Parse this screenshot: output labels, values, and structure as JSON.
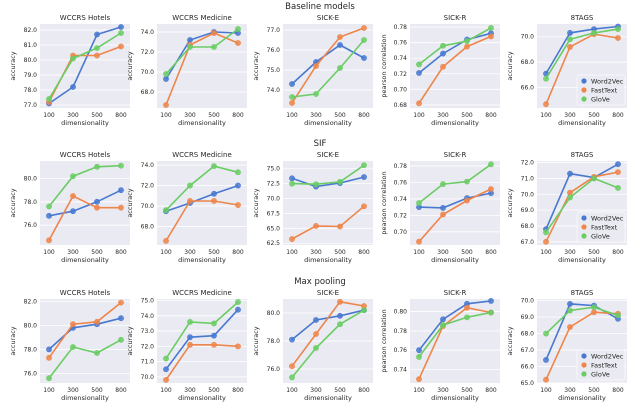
{
  "colors": {
    "Word2Vec": "#4878d0",
    "FastText": "#ee854a",
    "GloVe": "#6acc64",
    "plot_bg": "#eaeaf2",
    "grid": "#ffffff"
  },
  "legend": [
    "Word2Vec",
    "FastText",
    "GloVe"
  ],
  "row_titles": [
    "Baseline models",
    "SIF",
    "Max pooling"
  ],
  "chart_data": [
    {
      "type": "line",
      "row": "Baseline models",
      "title": "WCCRS Hotels",
      "xlabel": "dimensionality",
      "ylabel": "accuracy",
      "categories": [
        "100",
        "300",
        "500",
        "800"
      ],
      "ylim": [
        76.8,
        82.4
      ],
      "yticks": [
        77.0,
        78.0,
        79.0,
        80.0,
        81.0,
        82.0
      ],
      "ytick_labels": [
        "77.0",
        "78.0",
        "79.0",
        "80.0",
        "81.0",
        "82.0"
      ],
      "series": [
        {
          "name": "Word2Vec",
          "values": [
            77.1,
            78.2,
            81.7,
            82.2
          ]
        },
        {
          "name": "FastText",
          "values": [
            77.2,
            80.3,
            80.3,
            80.9
          ]
        },
        {
          "name": "GloVe",
          "values": [
            77.4,
            80.1,
            80.8,
            81.8
          ]
        }
      ]
    },
    {
      "type": "line",
      "row": "Baseline models",
      "title": "WCCRS Medicine",
      "xlabel": "dimensionality",
      "ylabel": "accuracy",
      "categories": [
        "100",
        "300",
        "500",
        "800"
      ],
      "ylim": [
        66.4,
        74.8
      ],
      "yticks": [
        68.0,
        70.0,
        72.0,
        74.0
      ],
      "ytick_labels": [
        "68.0",
        "70.0",
        "72.0",
        "74.0"
      ],
      "series": [
        {
          "name": "Word2Vec",
          "values": [
            69.3,
            73.2,
            74.0,
            73.9
          ]
        },
        {
          "name": "FastText",
          "values": [
            66.7,
            72.7,
            73.9,
            72.9
          ]
        },
        {
          "name": "GloVe",
          "values": [
            69.8,
            72.5,
            72.5,
            74.3
          ]
        }
      ]
    },
    {
      "type": "line",
      "row": "Baseline models",
      "title": "SICK-E",
      "xlabel": "dimensionality",
      "ylabel": "accuracy",
      "categories": [
        "100",
        "300",
        "500",
        "800"
      ],
      "ylim": [
        73.1,
        77.3
      ],
      "yticks": [
        74.0,
        75.0,
        76.0,
        77.0
      ],
      "ytick_labels": [
        "74.0",
        "75.0",
        "76.0",
        "77.0"
      ],
      "series": [
        {
          "name": "Word2Vec",
          "values": [
            74.3,
            75.4,
            76.25,
            75.6
          ]
        },
        {
          "name": "FastText",
          "values": [
            73.35,
            75.2,
            76.65,
            77.1
          ]
        },
        {
          "name": "GloVe",
          "values": [
            73.65,
            73.8,
            75.1,
            76.5
          ]
        }
      ]
    },
    {
      "type": "line",
      "row": "Baseline models",
      "title": "SICK-R",
      "xlabel": "dimensionality",
      "ylabel": "pearson correlation",
      "categories": [
        "100",
        "300",
        "500",
        "800"
      ],
      "ylim": [
        0.676,
        0.784
      ],
      "yticks": [
        0.68,
        0.7,
        0.72,
        0.74,
        0.76,
        0.78
      ],
      "ytick_labels": [
        "0.68",
        "0.70",
        "0.72",
        "0.74",
        "0.76",
        "0.78"
      ],
      "series": [
        {
          "name": "Word2Vec",
          "values": [
            0.721,
            0.746,
            0.764,
            0.772
          ]
        },
        {
          "name": "FastText",
          "values": [
            0.682,
            0.729,
            0.755,
            0.768
          ]
        },
        {
          "name": "GloVe",
          "values": [
            0.732,
            0.756,
            0.762,
            0.779
          ]
        }
      ]
    },
    {
      "type": "line",
      "row": "Baseline models",
      "title": "8TAGS",
      "xlabel": "dimensionality",
      "ylabel": "accuracy",
      "categories": [
        "100",
        "300",
        "500",
        "800"
      ],
      "ylim": [
        64.4,
        71.0
      ],
      "yticks": [
        66.0,
        68.0,
        70.0
      ],
      "ytick_labels": [
        "66.0",
        "68.0",
        "70.0"
      ],
      "legend_position": "lower-right",
      "series": [
        {
          "name": "Word2Vec",
          "values": [
            67.1,
            70.3,
            70.6,
            70.8
          ]
        },
        {
          "name": "FastText",
          "values": [
            64.7,
            69.2,
            70.2,
            69.9
          ]
        },
        {
          "name": "GloVe",
          "values": [
            66.7,
            69.8,
            70.3,
            70.6
          ]
        }
      ]
    },
    {
      "type": "line",
      "row": "SIF",
      "title": "WCCRS Hotels",
      "xlabel": "dimensionality",
      "ylabel": "accuracy",
      "categories": [
        "100",
        "300",
        "500",
        "800"
      ],
      "ylim": [
        74.3,
        81.5
      ],
      "yticks": [
        76.0,
        78.0,
        80.0
      ],
      "ytick_labels": [
        "76.0",
        "78.0",
        "80.0"
      ],
      "series": [
        {
          "name": "Word2Vec",
          "values": [
            76.8,
            77.2,
            78.0,
            79.0
          ]
        },
        {
          "name": "FastText",
          "values": [
            74.7,
            78.5,
            77.5,
            77.5
          ]
        },
        {
          "name": "GloVe",
          "values": [
            77.6,
            80.2,
            81.0,
            81.1
          ]
        }
      ]
    },
    {
      "type": "line",
      "row": "SIF",
      "title": "WCCRS Medicine",
      "xlabel": "dimensionality",
      "ylabel": "accuracy",
      "categories": [
        "100",
        "300",
        "500",
        "800"
      ],
      "ylim": [
        66.2,
        74.4
      ],
      "yticks": [
        68.0,
        70.0,
        72.0,
        74.0
      ],
      "ytick_labels": [
        "68.0",
        "70.0",
        "72.0",
        "74.0"
      ],
      "series": [
        {
          "name": "Word2Vec",
          "values": [
            69.5,
            70.3,
            71.2,
            72.0
          ]
        },
        {
          "name": "FastText",
          "values": [
            66.6,
            70.5,
            70.5,
            70.1
          ]
        },
        {
          "name": "GloVe",
          "values": [
            69.6,
            72.0,
            73.9,
            73.3
          ]
        }
      ]
    },
    {
      "type": "line",
      "row": "SIF",
      "title": "SICK-E",
      "xlabel": "dimensionality",
      "ylabel": "accuracy",
      "categories": [
        "100",
        "300",
        "500",
        "800"
      ],
      "ylim": [
        62.2,
        76.3
      ],
      "yticks": [
        62.5,
        65.0,
        67.5,
        70.0,
        72.5,
        75.0
      ],
      "ytick_labels": [
        "62.5",
        "65.0",
        "67.5",
        "70.0",
        "72.5",
        "75.0"
      ],
      "series": [
        {
          "name": "Word2Vec",
          "values": [
            73.4,
            72.0,
            72.6,
            73.6
          ]
        },
        {
          "name": "FastText",
          "values": [
            63.2,
            65.4,
            65.3,
            68.7
          ]
        },
        {
          "name": "GloVe",
          "values": [
            72.5,
            72.4,
            72.8,
            75.6
          ]
        }
      ]
    },
    {
      "type": "line",
      "row": "SIF",
      "title": "SICK-R",
      "xlabel": "dimensionality",
      "ylabel": "pearson correlation",
      "categories": [
        "100",
        "300",
        "500",
        "800"
      ],
      "ylim": [
        0.684,
        0.786
      ],
      "yticks": [
        0.7,
        0.72,
        0.74,
        0.76,
        0.78
      ],
      "ytick_labels": [
        "0.70",
        "0.72",
        "0.74",
        "0.76",
        "0.78"
      ],
      "series": [
        {
          "name": "Word2Vec",
          "values": [
            0.73,
            0.729,
            0.741,
            0.747
          ]
        },
        {
          "name": "FastText",
          "values": [
            0.688,
            0.721,
            0.738,
            0.752
          ]
        },
        {
          "name": "GloVe",
          "values": [
            0.735,
            0.758,
            0.761,
            0.782
          ]
        }
      ]
    },
    {
      "type": "line",
      "row": "SIF",
      "title": "8TAGS",
      "xlabel": "dimensionality",
      "ylabel": "accuracy",
      "categories": [
        "100",
        "300",
        "500",
        "800"
      ],
      "ylim": [
        66.8,
        72.1
      ],
      "yticks": [
        67.0,
        68.0,
        69.0,
        70.0,
        71.0,
        72.0
      ],
      "ytick_labels": [
        "67.0",
        "68.0",
        "69.0",
        "70.0",
        "71.0",
        "72.0"
      ],
      "legend_position": "lower-right",
      "series": [
        {
          "name": "Word2Vec",
          "values": [
            67.8,
            71.3,
            71.05,
            71.9
          ]
        },
        {
          "name": "FastText",
          "values": [
            67.0,
            70.1,
            71.1,
            71.4
          ]
        },
        {
          "name": "GloVe",
          "values": [
            67.6,
            69.8,
            71.0,
            70.4
          ]
        }
      ]
    },
    {
      "type": "line",
      "row": "Max pooling",
      "title": "WCCRS Hotels",
      "xlabel": "dimensionality",
      "ylabel": "accuracy",
      "categories": [
        "100",
        "300",
        "500",
        "800"
      ],
      "ylim": [
        75.2,
        82.2
      ],
      "yticks": [
        76.0,
        78.0,
        80.0,
        82.0
      ],
      "ytick_labels": [
        "76.0",
        "78.0",
        "80.0",
        "82.0"
      ],
      "series": [
        {
          "name": "Word2Vec",
          "values": [
            78.0,
            79.8,
            80.1,
            80.6
          ]
        },
        {
          "name": "FastText",
          "values": [
            77.3,
            80.1,
            80.3,
            81.9
          ]
        },
        {
          "name": "GloVe",
          "values": [
            75.6,
            78.2,
            77.7,
            78.8
          ]
        }
      ]
    },
    {
      "type": "line",
      "row": "Max pooling",
      "title": "WCCRS Medicine",
      "xlabel": "dimensionality",
      "ylabel": "accuracy",
      "categories": [
        "100",
        "300",
        "500",
        "800"
      ],
      "ylim": [
        69.6,
        75.1
      ],
      "yticks": [
        70.0,
        71.0,
        72.0,
        73.0,
        74.0,
        75.0
      ],
      "ytick_labels": [
        "70.0",
        "71.0",
        "72.0",
        "73.0",
        "74.0",
        "75.0"
      ],
      "series": [
        {
          "name": "Word2Vec",
          "values": [
            70.5,
            72.6,
            72.7,
            74.4
          ]
        },
        {
          "name": "FastText",
          "values": [
            69.8,
            72.1,
            72.1,
            72.0
          ]
        },
        {
          "name": "GloVe",
          "values": [
            71.2,
            73.6,
            73.5,
            74.9
          ]
        }
      ]
    },
    {
      "type": "line",
      "row": "Max pooling",
      "title": "SICK-E",
      "xlabel": "dimensionality",
      "ylabel": "accuracy",
      "categories": [
        "100",
        "300",
        "500",
        "800"
      ],
      "ylim": [
        75.0,
        81.0
      ],
      "yticks": [
        76.0,
        78.0,
        80.0
      ],
      "ytick_labels": [
        "76.0",
        "78.0",
        "80.0"
      ],
      "series": [
        {
          "name": "Word2Vec",
          "values": [
            78.1,
            79.5,
            79.8,
            80.2
          ]
        },
        {
          "name": "FastText",
          "values": [
            76.2,
            78.5,
            80.8,
            80.5
          ]
        },
        {
          "name": "GloVe",
          "values": [
            75.4,
            77.5,
            79.2,
            80.2
          ]
        }
      ]
    },
    {
      "type": "line",
      "row": "Max pooling",
      "title": "SICK-R",
      "xlabel": "dimensionality",
      "ylabel": "pearson correlation",
      "categories": [
        "100",
        "300",
        "500",
        "800"
      ],
      "ylim": [
        0.726,
        0.813
      ],
      "yticks": [
        0.74,
        0.76,
        0.78,
        0.8
      ],
      "ytick_labels": [
        "0.74",
        "0.76",
        "0.78",
        "0.80"
      ],
      "series": [
        {
          "name": "Word2Vec",
          "values": [
            0.76,
            0.792,
            0.808,
            0.811
          ]
        },
        {
          "name": "FastText",
          "values": [
            0.73,
            0.785,
            0.804,
            0.799
          ]
        },
        {
          "name": "GloVe",
          "values": [
            0.753,
            0.786,
            0.794,
            0.799
          ]
        }
      ]
    },
    {
      "type": "line",
      "row": "Max pooling",
      "title": "8TAGS",
      "xlabel": "dimensionality",
      "ylabel": "accuracy",
      "categories": [
        "100",
        "300",
        "500",
        "800"
      ],
      "ylim": [
        65.0,
        70.1
      ],
      "yticks": [
        65.0,
        66.0,
        67.0,
        68.0,
        69.0,
        70.0
      ],
      "ytick_labels": [
        "65.0",
        "66.0",
        "67.0",
        "68.0",
        "69.0",
        "70.0"
      ],
      "legend_position": "lower-right",
      "series": [
        {
          "name": "Word2Vec",
          "values": [
            66.4,
            69.8,
            69.7,
            68.9
          ]
        },
        {
          "name": "FastText",
          "values": [
            65.2,
            68.4,
            69.3,
            69.2
          ]
        },
        {
          "name": "GloVe",
          "values": [
            68.0,
            69.4,
            69.6,
            69.1
          ]
        }
      ]
    }
  ]
}
